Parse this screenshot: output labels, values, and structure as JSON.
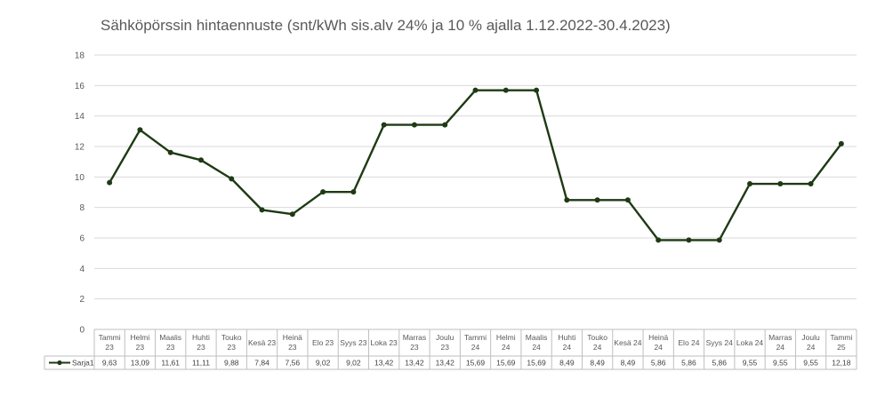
{
  "chart_data": {
    "type": "line",
    "title": "Sähköpörssin hintaennuste (snt/kWh sis.alv 24% ja 10 % ajalla 1.12.2022-30.4.2023)",
    "ylim": [
      0,
      18
    ],
    "yticks": [
      "0",
      "2",
      "4",
      "6",
      "8",
      "10",
      "12",
      "14",
      "16",
      "18"
    ],
    "grid": true,
    "data_table": true,
    "categories": [
      "Tammi 23",
      "Helmi 23",
      "Maalis 23",
      "Huhti 23",
      "Touko 23",
      "Kesä 23",
      "Heinä 23",
      "Elo 23",
      "Syys 23",
      "Loka 23",
      "Marras 23",
      "Joulu 23",
      "Tammi 24",
      "Helmi 24",
      "Maalis 24",
      "Huhti 24",
      "Touko 24",
      "Kesä 24",
      "Heinä 24",
      "Elo 24",
      "Syys 24",
      "Loka 24",
      "Marras 24",
      "Joulu 24",
      "Tammi 25"
    ],
    "series": [
      {
        "name": "Sarja1",
        "color": "#1e3a14",
        "values": [
          9.63,
          13.09,
          11.61,
          11.11,
          9.88,
          7.84,
          7.56,
          9.02,
          9.02,
          13.42,
          13.42,
          13.42,
          15.69,
          15.69,
          15.69,
          8.49,
          8.49,
          8.49,
          5.86,
          5.86,
          5.86,
          9.55,
          9.55,
          9.55,
          12.18
        ],
        "labels": [
          "9,63",
          "13,09",
          "11,61",
          "11,11",
          "9,88",
          "7,84",
          "7,56",
          "9,02",
          "9,02",
          "13,42",
          "13,42",
          "13,42",
          "15,69",
          "15,69",
          "15,69",
          "8,49",
          "8,49",
          "8,49",
          "5,86",
          "5,86",
          "5,86",
          "9,55",
          "9,55",
          "9,55",
          "12,18"
        ]
      }
    ]
  }
}
